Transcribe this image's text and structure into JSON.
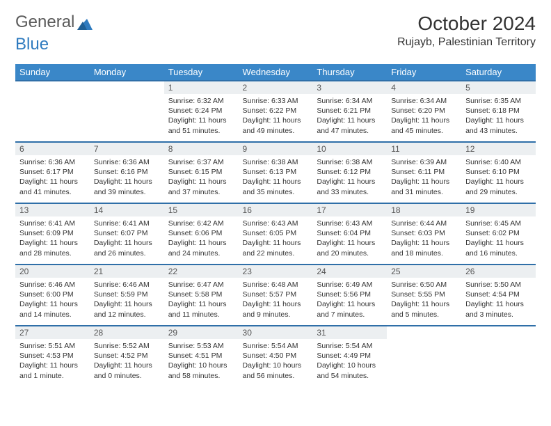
{
  "logo": {
    "text1": "General",
    "text2": "Blue"
  },
  "title": "October 2024",
  "location": "Rujayb, Palestinian Territory",
  "colors": {
    "header_bg": "#3a87c8",
    "header_text": "#ffffff",
    "row_border": "#2f6fa8",
    "daynum_bg": "#eceff1",
    "logo_gray": "#5a5a5a",
    "logo_blue": "#2f7bbf",
    "body_bg": "#ffffff",
    "text": "#333333"
  },
  "weekdays": [
    "Sunday",
    "Monday",
    "Tuesday",
    "Wednesday",
    "Thursday",
    "Friday",
    "Saturday"
  ],
  "weeks": [
    [
      null,
      null,
      {
        "n": "1",
        "sr": "Sunrise: 6:32 AM",
        "ss": "Sunset: 6:24 PM",
        "dl": "Daylight: 11 hours and 51 minutes."
      },
      {
        "n": "2",
        "sr": "Sunrise: 6:33 AM",
        "ss": "Sunset: 6:22 PM",
        "dl": "Daylight: 11 hours and 49 minutes."
      },
      {
        "n": "3",
        "sr": "Sunrise: 6:34 AM",
        "ss": "Sunset: 6:21 PM",
        "dl": "Daylight: 11 hours and 47 minutes."
      },
      {
        "n": "4",
        "sr": "Sunrise: 6:34 AM",
        "ss": "Sunset: 6:20 PM",
        "dl": "Daylight: 11 hours and 45 minutes."
      },
      {
        "n": "5",
        "sr": "Sunrise: 6:35 AM",
        "ss": "Sunset: 6:18 PM",
        "dl": "Daylight: 11 hours and 43 minutes."
      }
    ],
    [
      {
        "n": "6",
        "sr": "Sunrise: 6:36 AM",
        "ss": "Sunset: 6:17 PM",
        "dl": "Daylight: 11 hours and 41 minutes."
      },
      {
        "n": "7",
        "sr": "Sunrise: 6:36 AM",
        "ss": "Sunset: 6:16 PM",
        "dl": "Daylight: 11 hours and 39 minutes."
      },
      {
        "n": "8",
        "sr": "Sunrise: 6:37 AM",
        "ss": "Sunset: 6:15 PM",
        "dl": "Daylight: 11 hours and 37 minutes."
      },
      {
        "n": "9",
        "sr": "Sunrise: 6:38 AM",
        "ss": "Sunset: 6:13 PM",
        "dl": "Daylight: 11 hours and 35 minutes."
      },
      {
        "n": "10",
        "sr": "Sunrise: 6:38 AM",
        "ss": "Sunset: 6:12 PM",
        "dl": "Daylight: 11 hours and 33 minutes."
      },
      {
        "n": "11",
        "sr": "Sunrise: 6:39 AM",
        "ss": "Sunset: 6:11 PM",
        "dl": "Daylight: 11 hours and 31 minutes."
      },
      {
        "n": "12",
        "sr": "Sunrise: 6:40 AM",
        "ss": "Sunset: 6:10 PM",
        "dl": "Daylight: 11 hours and 29 minutes."
      }
    ],
    [
      {
        "n": "13",
        "sr": "Sunrise: 6:41 AM",
        "ss": "Sunset: 6:09 PM",
        "dl": "Daylight: 11 hours and 28 minutes."
      },
      {
        "n": "14",
        "sr": "Sunrise: 6:41 AM",
        "ss": "Sunset: 6:07 PM",
        "dl": "Daylight: 11 hours and 26 minutes."
      },
      {
        "n": "15",
        "sr": "Sunrise: 6:42 AM",
        "ss": "Sunset: 6:06 PM",
        "dl": "Daylight: 11 hours and 24 minutes."
      },
      {
        "n": "16",
        "sr": "Sunrise: 6:43 AM",
        "ss": "Sunset: 6:05 PM",
        "dl": "Daylight: 11 hours and 22 minutes."
      },
      {
        "n": "17",
        "sr": "Sunrise: 6:43 AM",
        "ss": "Sunset: 6:04 PM",
        "dl": "Daylight: 11 hours and 20 minutes."
      },
      {
        "n": "18",
        "sr": "Sunrise: 6:44 AM",
        "ss": "Sunset: 6:03 PM",
        "dl": "Daylight: 11 hours and 18 minutes."
      },
      {
        "n": "19",
        "sr": "Sunrise: 6:45 AM",
        "ss": "Sunset: 6:02 PM",
        "dl": "Daylight: 11 hours and 16 minutes."
      }
    ],
    [
      {
        "n": "20",
        "sr": "Sunrise: 6:46 AM",
        "ss": "Sunset: 6:00 PM",
        "dl": "Daylight: 11 hours and 14 minutes."
      },
      {
        "n": "21",
        "sr": "Sunrise: 6:46 AM",
        "ss": "Sunset: 5:59 PM",
        "dl": "Daylight: 11 hours and 12 minutes."
      },
      {
        "n": "22",
        "sr": "Sunrise: 6:47 AM",
        "ss": "Sunset: 5:58 PM",
        "dl": "Daylight: 11 hours and 11 minutes."
      },
      {
        "n": "23",
        "sr": "Sunrise: 6:48 AM",
        "ss": "Sunset: 5:57 PM",
        "dl": "Daylight: 11 hours and 9 minutes."
      },
      {
        "n": "24",
        "sr": "Sunrise: 6:49 AM",
        "ss": "Sunset: 5:56 PM",
        "dl": "Daylight: 11 hours and 7 minutes."
      },
      {
        "n": "25",
        "sr": "Sunrise: 6:50 AM",
        "ss": "Sunset: 5:55 PM",
        "dl": "Daylight: 11 hours and 5 minutes."
      },
      {
        "n": "26",
        "sr": "Sunrise: 5:50 AM",
        "ss": "Sunset: 4:54 PM",
        "dl": "Daylight: 11 hours and 3 minutes."
      }
    ],
    [
      {
        "n": "27",
        "sr": "Sunrise: 5:51 AM",
        "ss": "Sunset: 4:53 PM",
        "dl": "Daylight: 11 hours and 1 minute."
      },
      {
        "n": "28",
        "sr": "Sunrise: 5:52 AM",
        "ss": "Sunset: 4:52 PM",
        "dl": "Daylight: 11 hours and 0 minutes."
      },
      {
        "n": "29",
        "sr": "Sunrise: 5:53 AM",
        "ss": "Sunset: 4:51 PM",
        "dl": "Daylight: 10 hours and 58 minutes."
      },
      {
        "n": "30",
        "sr": "Sunrise: 5:54 AM",
        "ss": "Sunset: 4:50 PM",
        "dl": "Daylight: 10 hours and 56 minutes."
      },
      {
        "n": "31",
        "sr": "Sunrise: 5:54 AM",
        "ss": "Sunset: 4:49 PM",
        "dl": "Daylight: 10 hours and 54 minutes."
      },
      null,
      null
    ]
  ]
}
